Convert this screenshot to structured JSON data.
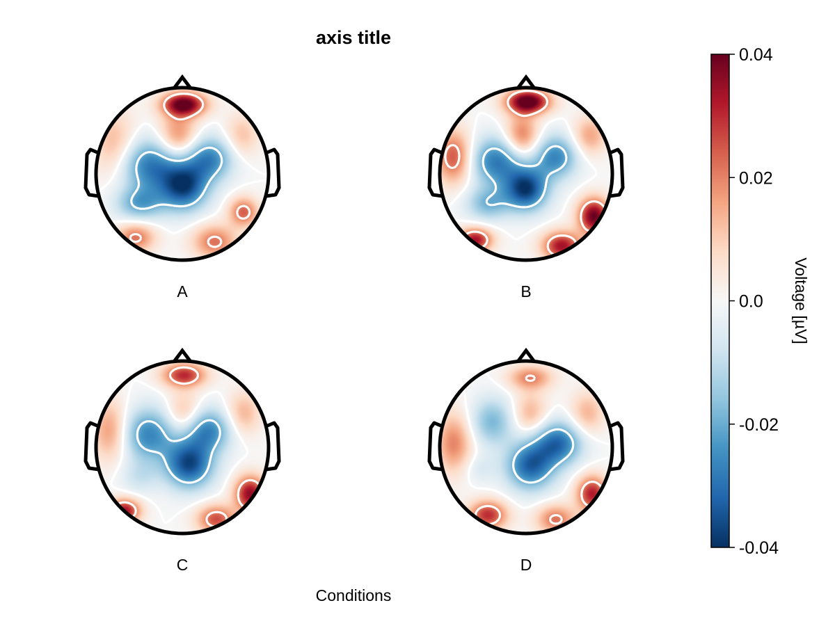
{
  "chart_data": {
    "type": "heatmap",
    "title": "axis title",
    "xlabel": "Conditions",
    "panels": [
      {
        "label": "A",
        "blobs": [
          {
            "x": 0.02,
            "y": 0.82,
            "sx": 0.18,
            "sy": 0.1,
            "v": 0.042
          },
          {
            "x": -0.05,
            "y": 0.45,
            "sx": 0.16,
            "sy": 0.2,
            "v": 0.02
          },
          {
            "x": -0.38,
            "y": 0.1,
            "sx": 0.25,
            "sy": 0.22,
            "v": -0.028
          },
          {
            "x": 0.32,
            "y": 0.18,
            "sx": 0.2,
            "sy": 0.18,
            "v": -0.026
          },
          {
            "x": 0.02,
            "y": -0.15,
            "sx": 0.2,
            "sy": 0.2,
            "v": -0.036
          },
          {
            "x": -0.5,
            "y": -0.35,
            "sx": 0.2,
            "sy": 0.14,
            "v": -0.02
          },
          {
            "x": -0.8,
            "y": 0.35,
            "sx": 0.18,
            "sy": 0.28,
            "v": 0.014
          },
          {
            "x": 0.72,
            "y": -0.45,
            "sx": 0.12,
            "sy": 0.12,
            "v": 0.024
          },
          {
            "x": -0.55,
            "y": -0.75,
            "sx": 0.16,
            "sy": 0.12,
            "v": 0.022
          },
          {
            "x": 0.38,
            "y": -0.8,
            "sx": 0.18,
            "sy": 0.14,
            "v": 0.022
          },
          {
            "x": 0.7,
            "y": 0.45,
            "sx": 0.14,
            "sy": 0.18,
            "v": 0.012
          }
        ]
      },
      {
        "label": "B",
        "blobs": [
          {
            "x": 0.02,
            "y": 0.85,
            "sx": 0.18,
            "sy": 0.1,
            "v": 0.045
          },
          {
            "x": -0.05,
            "y": 0.45,
            "sx": 0.14,
            "sy": 0.18,
            "v": 0.022
          },
          {
            "x": -0.35,
            "y": 0.15,
            "sx": 0.22,
            "sy": 0.2,
            "v": -0.028
          },
          {
            "x": 0.35,
            "y": 0.2,
            "sx": 0.18,
            "sy": 0.18,
            "v": -0.026
          },
          {
            "x": 0.0,
            "y": -0.18,
            "sx": 0.18,
            "sy": 0.18,
            "v": -0.038
          },
          {
            "x": -0.45,
            "y": -0.35,
            "sx": 0.18,
            "sy": 0.14,
            "v": -0.018
          },
          {
            "x": -0.85,
            "y": 0.2,
            "sx": 0.15,
            "sy": 0.22,
            "v": 0.026
          },
          {
            "x": 0.8,
            "y": -0.5,
            "sx": 0.13,
            "sy": 0.15,
            "v": 0.04
          },
          {
            "x": -0.6,
            "y": -0.78,
            "sx": 0.14,
            "sy": 0.1,
            "v": 0.034
          },
          {
            "x": 0.42,
            "y": -0.85,
            "sx": 0.16,
            "sy": 0.12,
            "v": 0.034
          },
          {
            "x": 0.75,
            "y": 0.45,
            "sx": 0.14,
            "sy": 0.16,
            "v": 0.016
          }
        ]
      },
      {
        "label": "C",
        "blobs": [
          {
            "x": 0.02,
            "y": 0.85,
            "sx": 0.18,
            "sy": 0.1,
            "v": 0.03
          },
          {
            "x": 0.02,
            "y": 0.4,
            "sx": 0.14,
            "sy": 0.18,
            "v": 0.014
          },
          {
            "x": -0.4,
            "y": 0.15,
            "sx": 0.22,
            "sy": 0.22,
            "v": -0.026
          },
          {
            "x": 0.3,
            "y": 0.2,
            "sx": 0.2,
            "sy": 0.18,
            "v": -0.026
          },
          {
            "x": 0.08,
            "y": -0.2,
            "sx": 0.2,
            "sy": 0.2,
            "v": -0.036
          },
          {
            "x": -0.5,
            "y": -0.35,
            "sx": 0.16,
            "sy": 0.14,
            "v": -0.008
          },
          {
            "x": -0.85,
            "y": 0.2,
            "sx": 0.15,
            "sy": 0.25,
            "v": 0.018
          },
          {
            "x": 0.8,
            "y": -0.55,
            "sx": 0.13,
            "sy": 0.15,
            "v": 0.036
          },
          {
            "x": -0.68,
            "y": -0.75,
            "sx": 0.13,
            "sy": 0.1,
            "v": 0.034
          },
          {
            "x": 0.4,
            "y": -0.85,
            "sx": 0.16,
            "sy": 0.12,
            "v": 0.026
          },
          {
            "x": 0.72,
            "y": 0.4,
            "sx": 0.14,
            "sy": 0.18,
            "v": 0.014
          }
        ]
      },
      {
        "label": "D",
        "blobs": [
          {
            "x": 0.05,
            "y": 0.82,
            "sx": 0.18,
            "sy": 0.1,
            "v": 0.02
          },
          {
            "x": 0.05,
            "y": 0.4,
            "sx": 0.14,
            "sy": 0.18,
            "v": 0.014
          },
          {
            "x": -0.4,
            "y": 0.3,
            "sx": 0.18,
            "sy": 0.2,
            "v": -0.018
          },
          {
            "x": 0.38,
            "y": 0.05,
            "sx": 0.2,
            "sy": 0.18,
            "v": -0.03
          },
          {
            "x": 0.05,
            "y": -0.22,
            "sx": 0.2,
            "sy": 0.2,
            "v": -0.032
          },
          {
            "x": -0.55,
            "y": -0.25,
            "sx": 0.14,
            "sy": 0.12,
            "v": -0.006
          },
          {
            "x": -0.85,
            "y": 0.05,
            "sx": 0.15,
            "sy": 0.25,
            "v": 0.02
          },
          {
            "x": 0.78,
            "y": -0.55,
            "sx": 0.13,
            "sy": 0.15,
            "v": 0.032
          },
          {
            "x": -0.45,
            "y": -0.8,
            "sx": 0.16,
            "sy": 0.12,
            "v": 0.03
          },
          {
            "x": 0.35,
            "y": -0.85,
            "sx": 0.16,
            "sy": 0.12,
            "v": 0.022
          },
          {
            "x": 0.72,
            "y": 0.4,
            "sx": 0.14,
            "sy": 0.18,
            "v": 0.014
          }
        ]
      }
    ],
    "colorbar": {
      "label": "Voltage [µV]",
      "range": [
        -0.04,
        0.04
      ],
      "ticks": [
        {
          "value": 0.04,
          "label": "0.04"
        },
        {
          "value": 0.02,
          "label": "0.02"
        },
        {
          "value": 0.0,
          "label": "0.0"
        },
        {
          "value": -0.02,
          "label": "-0.02"
        },
        {
          "value": -0.04,
          "label": "-0.04"
        }
      ],
      "colormap": [
        "#053061",
        "#2166ac",
        "#4393c3",
        "#92c5de",
        "#d1e5f0",
        "#f7f7f7",
        "#fddbc7",
        "#f4a582",
        "#d6604d",
        "#b2182b",
        "#67001f"
      ]
    },
    "contour_style": "white dotted",
    "grid": false
  }
}
